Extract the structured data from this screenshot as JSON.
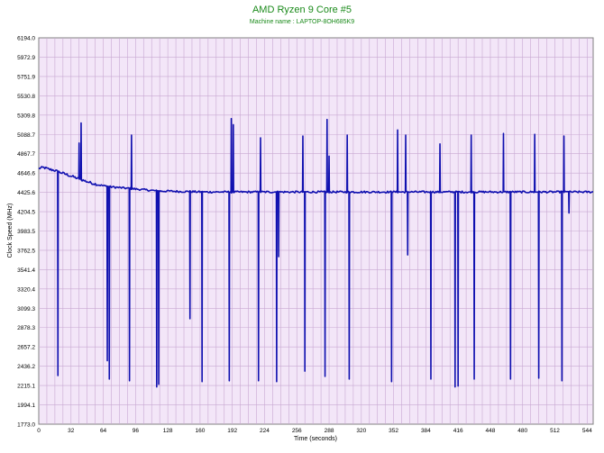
{
  "chart_data": {
    "type": "line",
    "title": "AMD Ryzen 9 Core #5",
    "subtitle": "Machine name : LAPTOP-8OH685K9",
    "xlabel": "Time (seconds)",
    "ylabel": "Clock Speed (MHz)",
    "xlim": [
      0,
      550
    ],
    "ylim": [
      1773.0,
      6194.0
    ],
    "xticks": [
      "0",
      "32",
      "64",
      "96",
      "128",
      "160",
      "192",
      "224",
      "256",
      "288",
      "320",
      "352",
      "384",
      "416",
      "448",
      "480",
      "512",
      "544"
    ],
    "yticks": [
      "6194.0",
      "5972.9",
      "5751.9",
      "5530.8",
      "5309.8",
      "5088.7",
      "4867.7",
      "4646.6",
      "4425.6",
      "4204.5",
      "3983.5",
      "3762.5",
      "3541.4",
      "3320.4",
      "3099.3",
      "2878.3",
      "2657.2",
      "2436.2",
      "2215.1",
      "1994.1",
      "1773.0"
    ],
    "grid": true,
    "colors": {
      "plot_bg": "#f3e6f8",
      "line": "#1010b0",
      "title": "#1a8a1a",
      "grid": "#c8a8d2"
    },
    "series": [
      {
        "name": "",
        "baseline_points": [
          [
            0,
            4700
          ],
          [
            5,
            4710
          ],
          [
            10,
            4690
          ],
          [
            15,
            4680
          ],
          [
            20,
            4660
          ],
          [
            30,
            4620
          ],
          [
            40,
            4580
          ],
          [
            50,
            4540
          ],
          [
            60,
            4510
          ],
          [
            70,
            4490
          ],
          [
            80,
            4480
          ],
          [
            90,
            4470
          ],
          [
            100,
            4460
          ],
          [
            110,
            4450
          ],
          [
            120,
            4440
          ],
          [
            130,
            4440
          ],
          [
            140,
            4435
          ],
          [
            150,
            4435
          ],
          [
            160,
            4430
          ],
          [
            170,
            4430
          ],
          [
            180,
            4430
          ],
          [
            190,
            4430
          ],
          [
            200,
            4430
          ],
          [
            220,
            4430
          ],
          [
            240,
            4430
          ],
          [
            260,
            4430
          ],
          [
            280,
            4430
          ],
          [
            300,
            4430
          ],
          [
            320,
            4430
          ],
          [
            340,
            4430
          ],
          [
            360,
            4430
          ],
          [
            380,
            4430
          ],
          [
            400,
            4430
          ],
          [
            420,
            4430
          ],
          [
            440,
            4430
          ],
          [
            460,
            4430
          ],
          [
            480,
            4430
          ],
          [
            500,
            4430
          ],
          [
            520,
            4430
          ],
          [
            550,
            4430
          ]
        ],
        "spikes": [
          [
            19,
            2330
          ],
          [
            40,
            4990
          ],
          [
            42,
            5220
          ],
          [
            68,
            2500
          ],
          [
            70,
            2290
          ],
          [
            90,
            2270
          ],
          [
            92,
            5080
          ],
          [
            117,
            2200
          ],
          [
            119,
            2230
          ],
          [
            150,
            2980
          ],
          [
            162,
            2260
          ],
          [
            189,
            2270
          ],
          [
            191,
            5270
          ],
          [
            193,
            5200
          ],
          [
            218,
            2270
          ],
          [
            220,
            5050
          ],
          [
            236,
            2260
          ],
          [
            238,
            3690
          ],
          [
            262,
            5070
          ],
          [
            264,
            2380
          ],
          [
            284,
            2320
          ],
          [
            286,
            5260
          ],
          [
            288,
            4840
          ],
          [
            306,
            5080
          ],
          [
            308,
            2290
          ],
          [
            350,
            2260
          ],
          [
            356,
            5140
          ],
          [
            364,
            5080
          ],
          [
            366,
            3710
          ],
          [
            389,
            2290
          ],
          [
            398,
            4980
          ],
          [
            413,
            2200
          ],
          [
            416,
            2210
          ],
          [
            429,
            5080
          ],
          [
            432,
            2290
          ],
          [
            461,
            5100
          ],
          [
            468,
            2290
          ],
          [
            492,
            5090
          ],
          [
            496,
            2300
          ],
          [
            519,
            2270
          ],
          [
            521,
            5070
          ],
          [
            526,
            4190
          ]
        ]
      }
    ]
  }
}
